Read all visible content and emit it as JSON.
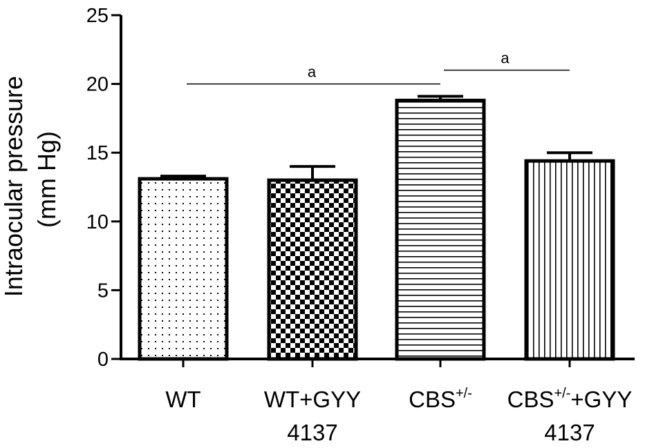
{
  "chart_data": {
    "type": "bar",
    "ylabel": [
      "Intraocular pressure",
      "(mm Hg)"
    ],
    "ylim": [
      0,
      25
    ],
    "yticks": [
      0,
      5,
      10,
      15,
      20,
      25
    ],
    "categories": [
      {
        "main": "WT",
        "sup": "",
        "suffix": "",
        "line2": ""
      },
      {
        "main": "WT+GYY",
        "sup": "",
        "suffix": "",
        "line2": "4137"
      },
      {
        "main": "CBS",
        "sup": "+/-",
        "suffix": "",
        "line2": ""
      },
      {
        "main": "CBS",
        "sup": "+/-",
        "suffix": "+GYY",
        "line2": "4137"
      }
    ],
    "values": [
      13.1,
      13.0,
      18.8,
      14.4
    ],
    "errors": [
      0.2,
      1.0,
      0.3,
      0.6
    ],
    "patterns": [
      "dots",
      "checker",
      "horizontal-lines",
      "vertical-lines"
    ],
    "significance": [
      {
        "from": 0,
        "to": 2,
        "y": 20.0,
        "label": "a"
      },
      {
        "from": 2,
        "to": 3,
        "y": 21.0,
        "label": "a"
      }
    ]
  }
}
